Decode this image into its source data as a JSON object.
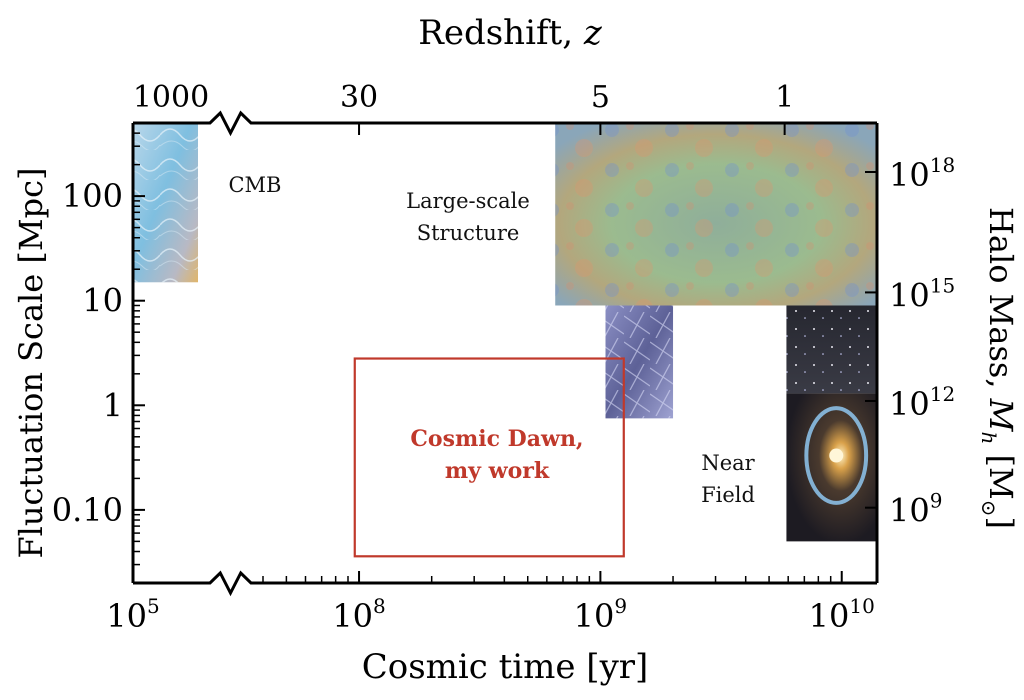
{
  "chart_data": {
    "type": "region-diagram",
    "title": "",
    "xlabel": "Cosmic time [yr]",
    "ylabel": "Fluctuation Scale [Mpc]",
    "top_xlabel_prefix": "Redshift, ",
    "top_xlabel_var": "z",
    "right_ylabel_prefix": "Halo Mass, ",
    "right_ylabel_var": "M",
    "right_ylabel_sub": "h",
    "right_ylabel_unit_open": "[M",
    "right_ylabel_unit_sun": "⊙",
    "right_ylabel_unit_close": "]",
    "x_scale": "log-with-axis-break",
    "y_scale": "log",
    "xlim": [
      100000,
      14000000000
    ],
    "ylim": [
      0.02,
      500
    ],
    "axis_break_x_range": [
      200000,
      40000000
    ],
    "x_ticks": [
      {
        "base": "10",
        "exp": "5",
        "value": 100000
      },
      {
        "base": "10",
        "exp": "8",
        "value": 100000000
      },
      {
        "base": "10",
        "exp": "9",
        "value": 1000000000
      },
      {
        "base": "10",
        "exp": "10",
        "value": 10000000000
      }
    ],
    "y_ticks": [
      {
        "label": "100",
        "value": 100
      },
      {
        "label": "10",
        "value": 10
      },
      {
        "label": "1",
        "value": 1
      },
      {
        "label": "0.10",
        "value": 0.1
      }
    ],
    "top_ticks": [
      {
        "label": "1000",
        "time": 150000
      },
      {
        "label": "30",
        "time": 100000000
      },
      {
        "label": "5",
        "time": 1000000000
      },
      {
        "label": "1",
        "time": 5800000000
      }
    ],
    "right_ticks": [
      {
        "base": "10",
        "exp": "18",
        "scale": 170
      },
      {
        "base": "10",
        "exp": "15",
        "scale": 12
      },
      {
        "base": "10",
        "exp": "12",
        "scale": 1.1
      },
      {
        "base": "10",
        "exp": "9",
        "scale": 0.105
      }
    ],
    "regions": [
      {
        "name": "CMB",
        "label_lines": [
          "CMB"
        ],
        "t_range": [
          100000,
          200000
        ],
        "scale_range": [
          15,
          500
        ],
        "style": "cmb"
      },
      {
        "name": "Large-scale Structure",
        "label_lines": [
          "Large-scale",
          "Structure"
        ],
        "t_range": [
          650000000,
          14000000000
        ],
        "scale_range": [
          9,
          500
        ],
        "style": "lss"
      },
      {
        "name": "Cosmic Web",
        "label_lines": [],
        "t_range": [
          1050000000,
          2000000000
        ],
        "scale_range": [
          0.75,
          9
        ],
        "style": "web"
      },
      {
        "name": "Galaxy Field",
        "label_lines": [],
        "t_range": [
          5900000000,
          14000000000
        ],
        "scale_range": [
          1.3,
          9
        ],
        "style": "field"
      },
      {
        "name": "Near Field",
        "label_lines": [
          "Near",
          "Field"
        ],
        "t_range": [
          5900000000,
          14000000000
        ],
        "scale_range": [
          0.05,
          1.3
        ],
        "style": "lens"
      },
      {
        "name": "Cosmic Dawn",
        "label_lines": [
          "Cosmic Dawn,",
          "my work"
        ],
        "t_range": [
          96000000,
          1250000000
        ],
        "scale_range": [
          0.036,
          2.8
        ],
        "style": "highlight"
      }
    ],
    "grid": false,
    "legend": "none",
    "colors": {
      "axis": "#000000",
      "highlight": "#c0392b",
      "cmb": "#8fc6e0",
      "lss": "#8fb79a",
      "web": "#7478a8",
      "field": "#2c2d34",
      "lens": "#2a2830"
    }
  }
}
